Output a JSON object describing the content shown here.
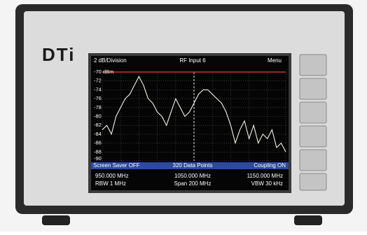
{
  "brand": "DTi",
  "screen": {
    "header": {
      "scale": "2 dB/Division",
      "input": "RF Input 6",
      "menu": "Menu"
    },
    "status": {
      "screen_saver": "Screen Saver OFF",
      "points": "320 Data Points",
      "coupling": "Coupling ON"
    },
    "footer": {
      "start": "950.000 MHz",
      "center": "1050.000 MHz",
      "stop": "1150.000 MHz",
      "rbw": "RBW  1 MHz",
      "span": "Span 200 MHz",
      "vbw": "VBW  30 kHz"
    }
  },
  "chart_data": {
    "type": "line",
    "color": "#f2f2e6",
    "grid": true,
    "reference_color": "#e0402a",
    "x": [
      950,
      955,
      960,
      965,
      970,
      975,
      980,
      985,
      990,
      995,
      1000,
      1005,
      1010,
      1015,
      1020,
      1025,
      1030,
      1035,
      1040,
      1045,
      1050,
      1055,
      1060,
      1065,
      1070,
      1075,
      1080,
      1085,
      1090,
      1095,
      1100,
      1105,
      1110,
      1115,
      1120,
      1125,
      1130,
      1135,
      1140,
      1145,
      1150
    ],
    "values": [
      -83,
      -82,
      -84,
      -80,
      -78,
      -76,
      -75,
      -73,
      -71,
      -73,
      -76,
      -77,
      -79,
      -80,
      -82,
      -79,
      -76,
      -78,
      -80,
      -79,
      -77,
      -75,
      -74,
      -74,
      -75,
      -76,
      -77,
      -79,
      -82,
      -86,
      -83,
      -81,
      -85,
      -82,
      -86,
      -84,
      -85,
      -83,
      -87,
      -86,
      -88
    ],
    "xlim": [
      950,
      1150
    ],
    "xticks": [
      950,
      970,
      990,
      1010,
      1030,
      1050,
      1070,
      1090,
      1110,
      1130,
      1150
    ],
    "ylim": [
      -90,
      -70
    ],
    "yticks": [
      {
        "value": -70,
        "label": "-70  dBm"
      },
      -72,
      -74,
      -76,
      -78,
      -80,
      -82,
      -84,
      -86,
      -88,
      -90
    ]
  }
}
